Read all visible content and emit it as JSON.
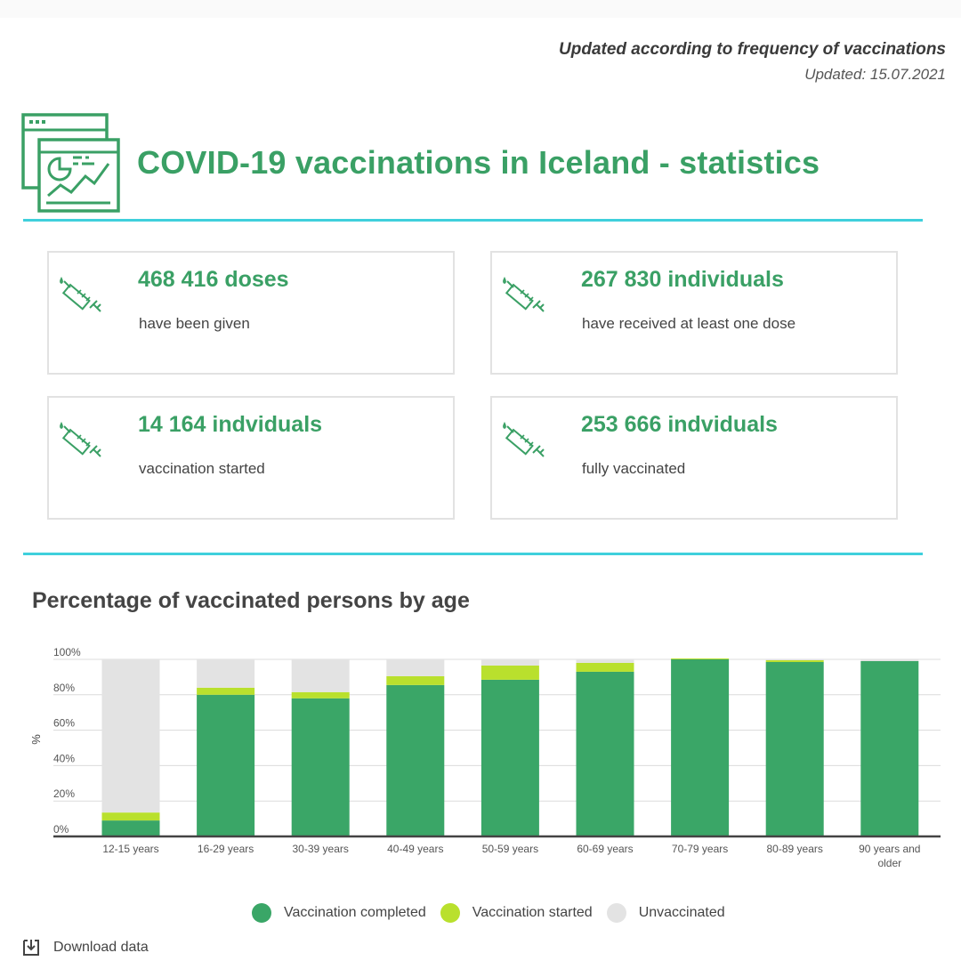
{
  "update_note": {
    "frequency": "Updated according to frequency of vaccinations",
    "date": "Updated: 15.07.2021"
  },
  "header": {
    "title": "COVID-19 vaccinations in Iceland - statistics",
    "icon": "dashboard-chart-icon"
  },
  "cards": [
    {
      "value": "468 416 doses",
      "desc": "have been given",
      "icon": "syringe-icon"
    },
    {
      "value": "267 830 individuals",
      "desc": "have received at least one dose",
      "icon": "syringe-icon"
    },
    {
      "value": "14 164 indviduals",
      "desc": "vaccination started",
      "icon": "syringe-icon"
    },
    {
      "value": "253 666 indviduals",
      "desc": "fully vaccinated",
      "icon": "syringe-icon"
    }
  ],
  "chart_title": "Percentage of vaccinated persons by age",
  "chart_data": {
    "type": "bar",
    "stacked": true,
    "title": "Percentage of vaccinated persons by age",
    "ylabel": "%",
    "ylim": [
      0,
      100
    ],
    "yticks": [
      "0%",
      "20%",
      "40%",
      "60%",
      "80%",
      "100%"
    ],
    "grid": true,
    "categories": [
      [
        "12-15 years"
      ],
      [
        "16-29 years"
      ],
      [
        "30-39 years"
      ],
      [
        "40-49 years"
      ],
      [
        "50-59 years"
      ],
      [
        "60-69 years"
      ],
      [
        "70-79 years"
      ],
      [
        "80-89 years"
      ],
      [
        "90 years and",
        "older"
      ]
    ],
    "series": [
      {
        "name": "Vaccination completed",
        "color": "#3aa667",
        "values": [
          9,
          80,
          78,
          85.5,
          88.5,
          93,
          100,
          98.5,
          99
        ]
      },
      {
        "name": "Vaccination started",
        "color": "#b9e02d",
        "values": [
          4.5,
          4,
          3.5,
          5,
          8,
          5,
          0.5,
          1,
          0
        ]
      },
      {
        "name": "Unvaccinated",
        "color": "#e3e3e3",
        "values": [
          86.5,
          16,
          18.5,
          9.5,
          3.5,
          2,
          0,
          0.5,
          1
        ]
      }
    ],
    "legend": "bottom"
  },
  "download_label": "Download data",
  "colors": {
    "accent_green": "#3aa065",
    "rule_cyan": "#3fd0dc",
    "card_border": "#e2e2e2"
  }
}
